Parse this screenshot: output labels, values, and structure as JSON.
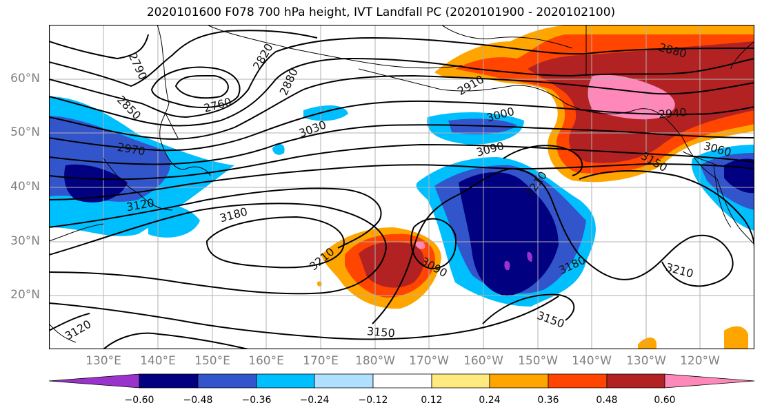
{
  "title": "2020101600 F078 700 hPa height, IVT Landfall PC (2020101900 - 2020102100)",
  "lat_labels": [
    "60°N",
    "50°N",
    "40°N",
    "30°N",
    "20°N"
  ],
  "lon_labels": [
    "130°E",
    "140°E",
    "150°E",
    "160°E",
    "170°E",
    "180°W",
    "170°W",
    "160°W",
    "150°W",
    "140°W",
    "130°W",
    "120°W"
  ],
  "colorbar": {
    "ticks": [
      "−0.60",
      "−0.48",
      "−0.36",
      "−0.24",
      "−0.12",
      "0.12",
      "0.24",
      "0.36",
      "0.48",
      "0.60"
    ],
    "colors": [
      "#9933cc",
      "#000080",
      "#3355cc",
      "#00bfff",
      "#b0e0ff",
      "#ffffff",
      "#ffea80",
      "#ffa500",
      "#ff4500",
      "#b22222",
      "#ff88bb"
    ]
  },
  "contour_labels": [
    "2790",
    "2820",
    "2880",
    "2760",
    "2850",
    "2910",
    "2880",
    "3000",
    "2940",
    "3030",
    "2970",
    "3090",
    "3060",
    "3150",
    "3210",
    "3120",
    "3180",
    "3210",
    "3090",
    "3180",
    "3210",
    "3120",
    "3150",
    "3150"
  ],
  "colors": {
    "lines": "#000000",
    "grid": "#b0b0b0"
  }
}
